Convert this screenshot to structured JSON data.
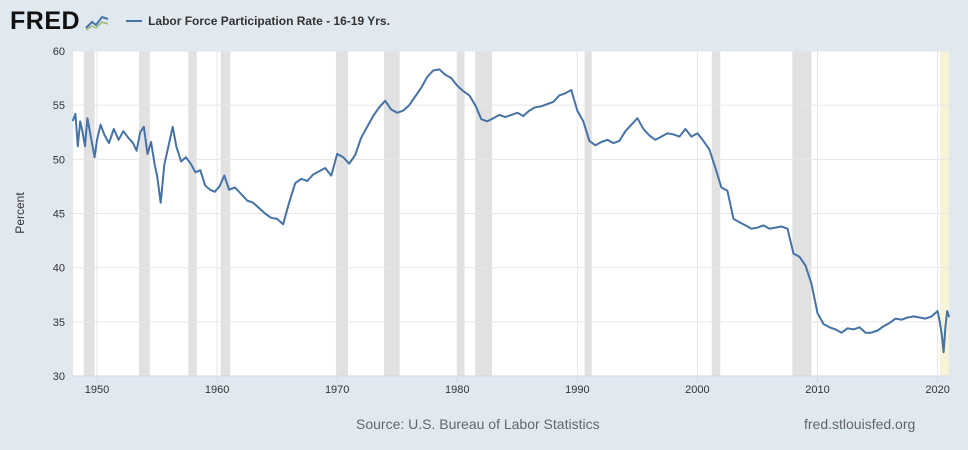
{
  "header": {
    "logo_text": "FRED",
    "logo_icon": "line-chart-icon",
    "series_label": "Labor Force Participation Rate - 16-19 Yrs."
  },
  "footer": {
    "source": "Source: U.S. Bureau of Labor Statistics",
    "site": "fred.stlouisfed.org"
  },
  "chart_data": {
    "type": "line",
    "title": "",
    "xlabel": "",
    "ylabel": "Percent",
    "xlim": [
      1948.0,
      2020.95
    ],
    "ylim": [
      30,
      60
    ],
    "x_ticks": [
      1950,
      1960,
      1970,
      1980,
      1990,
      2000,
      2010,
      2020
    ],
    "y_ticks": [
      30,
      35,
      40,
      45,
      50,
      55,
      60
    ],
    "grid": true,
    "legend": "top-left",
    "line_color": "#4572a7",
    "recession_color": "#e1e1e1",
    "recessions": [
      [
        1948.9,
        1949.8
      ],
      [
        1953.5,
        1954.4
      ],
      [
        1957.6,
        1958.3
      ],
      [
        1960.3,
        1961.1
      ],
      [
        1969.9,
        1970.9
      ],
      [
        1973.9,
        1975.2
      ],
      [
        1980.0,
        1980.6
      ],
      [
        1981.5,
        1982.9
      ],
      [
        1990.6,
        1991.2
      ],
      [
        2001.2,
        2001.9
      ],
      [
        2007.9,
        2009.5
      ]
    ],
    "current_recession": [
      2020.2,
      2020.95
    ],
    "current_recession_color": "#f7f3d6",
    "series": [
      {
        "name": "Labor Force Participation Rate - 16-19 Yrs.",
        "x": [
          1948.0,
          1948.2,
          1948.4,
          1948.6,
          1948.8,
          1949.0,
          1949.2,
          1949.5,
          1949.8,
          1950.0,
          1950.3,
          1950.6,
          1951.0,
          1951.4,
          1951.8,
          1952.2,
          1952.6,
          1953.0,
          1953.3,
          1953.6,
          1953.9,
          1954.2,
          1954.5,
          1954.8,
          1955.0,
          1955.3,
          1955.6,
          1956.0,
          1956.3,
          1956.6,
          1957.0,
          1957.4,
          1957.8,
          1958.2,
          1958.6,
          1959.0,
          1959.4,
          1959.8,
          1960.2,
          1960.6,
          1961.0,
          1961.5,
          1962.0,
          1962.5,
          1963.0,
          1963.5,
          1964.0,
          1964.5,
          1965.0,
          1965.5,
          1966.0,
          1966.5,
          1967.0,
          1967.5,
          1968.0,
          1968.5,
          1969.0,
          1969.5,
          1970.0,
          1970.5,
          1971.0,
          1971.5,
          1972.0,
          1972.5,
          1973.0,
          1973.5,
          1974.0,
          1974.5,
          1975.0,
          1975.5,
          1976.0,
          1976.5,
          1977.0,
          1977.5,
          1978.0,
          1978.5,
          1979.0,
          1979.5,
          1980.0,
          1980.5,
          1981.0,
          1981.5,
          1982.0,
          1982.5,
          1983.0,
          1983.5,
          1984.0,
          1984.5,
          1985.0,
          1985.5,
          1986.0,
          1986.5,
          1987.0,
          1987.5,
          1988.0,
          1988.5,
          1989.0,
          1989.5,
          1990.0,
          1990.5,
          1991.0,
          1991.5,
          1992.0,
          1992.5,
          1993.0,
          1993.5,
          1994.0,
          1994.5,
          1995.0,
          1995.5,
          1996.0,
          1996.5,
          1997.0,
          1997.5,
          1998.0,
          1998.5,
          1999.0,
          1999.5,
          2000.0,
          2000.5,
          2001.0,
          2001.5,
          2002.0,
          2002.5,
          2003.0,
          2003.5,
          2004.0,
          2004.5,
          2005.0,
          2005.5,
          2006.0,
          2006.5,
          2007.0,
          2007.5,
          2008.0,
          2008.5,
          2009.0,
          2009.5,
          2010.0,
          2010.5,
          2011.0,
          2011.5,
          2012.0,
          2012.5,
          2013.0,
          2013.5,
          2014.0,
          2014.5,
          2015.0,
          2015.5,
          2016.0,
          2016.5,
          2017.0,
          2017.5,
          2018.0,
          2018.5,
          2019.0,
          2019.5,
          2020.0,
          2020.2,
          2020.35,
          2020.5,
          2020.65,
          2020.8,
          2020.95
        ],
        "values": [
          53.6,
          54.2,
          51.2,
          53.5,
          52.5,
          51.2,
          53.8,
          52.0,
          50.2,
          51.8,
          53.2,
          52.3,
          51.5,
          52.8,
          51.8,
          52.6,
          52.0,
          51.5,
          50.8,
          52.5,
          53.0,
          50.5,
          51.6,
          49.5,
          48.5,
          46.0,
          49.5,
          51.5,
          53.0,
          51.2,
          49.8,
          50.2,
          49.6,
          48.8,
          49.0,
          47.6,
          47.2,
          47.0,
          47.5,
          48.5,
          47.2,
          47.4,
          46.8,
          46.2,
          46.0,
          45.5,
          45.0,
          44.6,
          44.5,
          44.0,
          46.0,
          47.8,
          48.2,
          48.0,
          48.6,
          48.9,
          49.2,
          48.5,
          50.5,
          50.2,
          49.6,
          50.4,
          52.0,
          53.0,
          54.0,
          54.8,
          55.4,
          54.6,
          54.3,
          54.5,
          55.0,
          55.8,
          56.6,
          57.6,
          58.2,
          58.3,
          57.8,
          57.5,
          56.8,
          56.3,
          55.9,
          55.0,
          53.7,
          53.5,
          53.8,
          54.1,
          53.9,
          54.1,
          54.3,
          54.0,
          54.5,
          54.8,
          54.9,
          55.1,
          55.3,
          55.9,
          56.1,
          56.4,
          54.5,
          53.5,
          51.7,
          51.3,
          51.6,
          51.8,
          51.5,
          51.7,
          52.6,
          53.2,
          53.8,
          52.8,
          52.2,
          51.8,
          52.1,
          52.4,
          52.3,
          52.1,
          52.8,
          52.1,
          52.4,
          51.7,
          50.9,
          49.2,
          47.4,
          47.1,
          44.5,
          44.2,
          43.9,
          43.6,
          43.7,
          43.9,
          43.6,
          43.7,
          43.8,
          43.6,
          41.3,
          41.0,
          40.2,
          38.5,
          35.8,
          34.8,
          34.5,
          34.3,
          34.0,
          34.4,
          34.3,
          34.5,
          34.0,
          34.0,
          34.2,
          34.6,
          34.9,
          35.3,
          35.2,
          35.4,
          35.5,
          35.4,
          35.3,
          35.5,
          36.0,
          34.9,
          33.8,
          32.2,
          34.5,
          36.0,
          35.5
        ]
      }
    ]
  }
}
